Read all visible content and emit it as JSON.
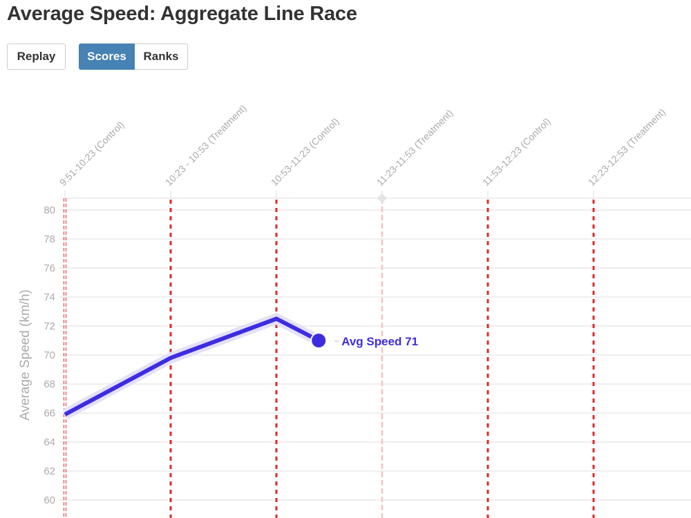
{
  "header": {
    "title": "Average Speed: Aggregate Line Race"
  },
  "controls": {
    "replay_label": "Replay",
    "scores_label": "Scores",
    "ranks_label": "Ranks",
    "active_mode": "Scores"
  },
  "colors": {
    "line": "#3d2de0",
    "line_halo": "#e4e0f8",
    "marker_line": "#dd2a2a",
    "active_marker_line": "#f2c4c4",
    "button_active": "#4682b4",
    "grid": "#eeeeee",
    "axis_text": "#aaaaaa"
  },
  "chart_data": {
    "type": "line",
    "title": "Average Speed: Aggregate Line Race",
    "xlabel": "",
    "ylabel": "Average Speed (km/h)",
    "ylim": [
      60,
      80
    ],
    "yticks": [
      60,
      62,
      64,
      66,
      68,
      70,
      72,
      74,
      76,
      78,
      80
    ],
    "grid": true,
    "categories": [
      "9:51-10:23 (Control)",
      "10:23 - 10:53 (Treatment)",
      "10:53-11:23 (Control)",
      "11:23-11:53 (Treatment)",
      "11:53-12:23 (Control)",
      "12:23-12:53 (Treatment)"
    ],
    "series": [
      {
        "name": "Avg Speed",
        "x": [
          0,
          1,
          2,
          2.4
        ],
        "values": [
          65.9,
          69.8,
          72.5,
          71
        ],
        "end_label": "Avg Speed 71"
      }
    ],
    "current_position_category": "11:23-11:53 (Treatment)"
  }
}
